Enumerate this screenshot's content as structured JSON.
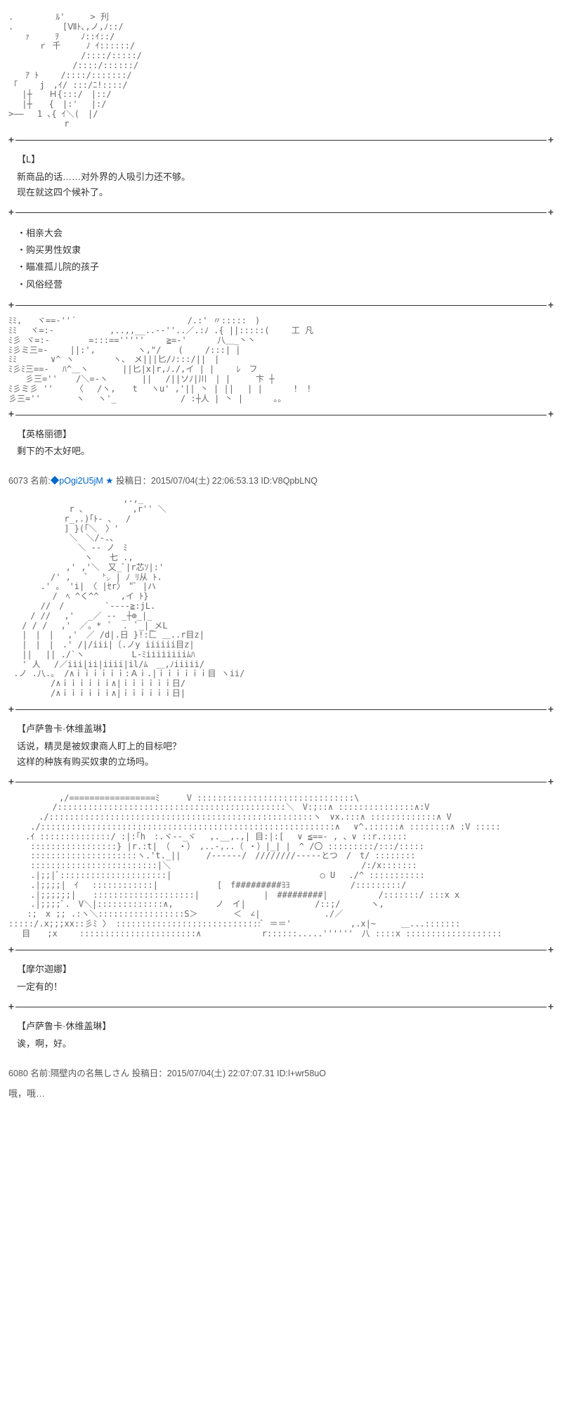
{
  "art1": ".　　　　　ﾙ'　　　> 刋\n.　　 　 　 [Ⅶﾄ､,ノ,ﾉ::/\n　　ｧ　　　ｦ 　　ﾉ::ｲ::/\n　　　 ｒ 千　　　ﾉ ｲ::::::/\n 　　　　　　　　/::::/:::::/\n　　　　　　　 /::::/::::::/\n　　ｱ ﾄ　　 /::::/:::::::/\n ｢　　 j　,ｲ/ :::/ﾆ!::::/\n　 |┼　　Ｈ{:::/　|::/\n　 |┼　　{　|:'　 |:/\n>――　 1 ､{ ｲ＼(　|/\n　　　　　　 r",
  "block_l_speaker": "【L】",
  "block_l_line1": "新商品的话……对外界的人吸引力还不够。",
  "block_l_line2": "现在就这四个候补了。",
  "list1": "・相亲大会",
  "list2": "・购买男性奴隶",
  "list3": "・瞄准孤儿院的孩子",
  "list4": "・风俗经营",
  "art2": "ﾐﾐ,   ヾ==‐''´ 　　　　　　　　　　　　 /.:' 〃:::::　)\nﾐﾐ 　ヾ=:‐　　　　　　 ,..,,__..--''..／.:ﾉ .{ ||:::::(　 　工 凡\nﾐ彡 ヾ=:‐　　　　 =:::=='''''　 　≧=-' 　　　八＿_丶丶\nﾐ彡ミ三=‐ 　　||:',　　　　　ヽ,\"/　　(　　 /:::| |\nﾐﾐ　　　　∨^ ヽ 　　　　ヽ、　メ|||匕/ﾉ:::/||　|\nﾐ彡ﾐ三==‐　 ﾊ^＿ヽ　　　　||匕|x|r,ﾉ./,イ | | 　　ﾚ　フ\n　　彡三='' 　 /＼=-ヽ　　　　|| 　/||ソﾉ|川　| |　　　卞 ┼\nﾐ彡ミ彡 ''　　 〈　 /ヽ,　　t 　ヽu' ,'|| 丶 | ||　 | |　　　 !　!\n彡三='' 　　　 ヽ　 ヽ'_　　 　　　　　/ :┼人 | 丶 |　　　 。。",
  "block_ing_speaker": "【英格丽德】",
  "block_ing_line1": "剩下的不太好吧。",
  "post1_num": "6073",
  "post1_nameprefix": "名前:",
  "post1_trip": "◆pOgi2U5jM",
  "post1_star": "★",
  "post1_meta": "投稿日：2015/07/04(土) 22:06:53.13 ID:V8QpbLNQ",
  "art3": "　　　　　　　　　　　　　 ,.,_\n　　　　　 　 r ､ 　　　 　 ,r'' ＼\n　　　　　　 r_,.)｢ﾄ- ､　 /\n　　　　　　 ] }(｢＼　〉'\n　　　　　 　 ＼　＼/-.、\n　　　　　　 　 ＼ -- ノ　ﾐ\n　　　　　　　　　ヽ　　七 ., 　\n　　　 　 　 ,' ,'＼　又_ﾞ|r芯ｿ|:'\n　　　　　/' , 　ﾞ　 ㌧ | ﾉ ﾘ从 ﾄ.\n 　 　 .' 。 'i|　〈 |ｾr〉　\"ﾞ |ハ\n　　　 　 /　ﾍ ^く^^ 　　,イ ﾄ}\n 　 　 //　/　 　 　 `----≧:jL.\n　　 / // 　,'　 _／ -- _┼⊕_|_\n　 / / / 　,'　／。*  ﾟ  .  ﾟ_|_メL\n　 |　|　| 　,'　／ /d|.日 }!:匚 ＿..r目z|\n　 |　|　|　.' /|/iii|〔.ノy iiiiii目z|\n　 ||　 || ./`ヽ　　　　　 L-ﾐiiiiiiiiﾑﾊ\n　 ' 人 　/／iii|ii|iiii|il/ﾑ　＿,ﾉiiiii/\n .ノ .八.。 /∧ｉｉｉｉｉｉ:Ａｉ.|ｉｉｉｉｉｉ目 ヽii/\n　　　　　/∧ｉｉｉｉｉｉ∧|ｉｉｉｉｉｉ日/\n　　　　　/∧ｉｉｉｉｉｉ∧|ｉｉｉｉｉｉ日|",
  "block_lusa_speaker": "【卢萨鲁卡·休维盖琳】",
  "block_lusa_line1": "话说，精灵是被奴隶商人盯上的目标吧？",
  "block_lusa_line2": "这样的种族有购买奴隶的立场吗。",
  "art4": "　　　　　　,/=================ﾐ 　　 V :::::::::::::::::::::::::::::::\\\n　　　 　 /:::::::::::::::::::::::::::::::::::::::::::::＼　V:;::∧ :::::::::::::::∧:V\n　　　 ./::::::::::::::::::::::::::::::::::::::::::::::::::::ヽ　∨x.:::∧ :::::::::::::∧ V\n　　 ./::::::::::::::::::::::::::::::::::::::::::::::::::::::::::∧ 　∨^.::::::∧ ::::::::∧ :V :::::\n　　.ｲ ::::::::::::::/ :|:｢h　:.ヾ--_ヾ 　,.__,.,| 目:|:[ 　∨ ≦==- , 、∨ ::r.:::::\n　　 :::::::::::::::::} |r.:t|　（　・）　,..-,..（ ・）|_| |　^ /〇 :::::::::/:::/:::::\n　　 :::::::::::::::::::::ヽ.'t._||　　　/------/　////////-----とつ　/　t/ ::::::::\n　　 :::::::::::::::::::::::::|＼ 　　　　　　　　　　　　　　　　　　　　　　/:/x:::::::\n　　 .|;;|ﾞ:::::::::::::::::::::|　　　 　　　　　　　　　　　　　　○ U 　./^ :::::::::::\n　　 .|;;;;|　ｲ 　::::::::::::|　　　　　　　[　f#########ﾖﾖ 　　 　　　　/:::::::::/\n　　 .|;;;;;;|　　::::::::::::::::::::| 　　　　　　　|　#########|　　　　　　/:::::::/ :::x x\n　　 .|;;;;ﾞ.　V＼|:::::::::::::∧,　　　　　ノ　イ| 　　　　　　　 /::;/　　　 ヽ,\n 　 :;　x ;; .:ヽ＼:::::::::::::::::S＞ 　　　 ＜　∠|　　　　 　　　./／\n:::::/.x;;;xx::彡ﾐ 〉 :::::::::::::::::::::::::::::ﾞ ＝＝'　　　　　　　,.x|~　　　＿...:::::::\n　 目　　;x　 　:::::::::::::::::::::::∧ 　　　　　　 r::::::.....''''''　八 ::::x :::::::::::::::::::",
  "block_mor_speaker": "【摩尔迦娜】",
  "block_mor_line1": "一定有的！",
  "block_lusa2_speaker": "【卢萨鲁卡·休维盖琳】",
  "block_lusa2_line1": "诶，啊，好。",
  "post2_num": "6080",
  "post2_nameprefix": "名前:",
  "post2_name": "隔壁内の名無しさん",
  "post2_meta": "投稿日：2015/07/04(土) 22:07:07.31 ID:l+wr58uO",
  "footer_text": "哦，哦…"
}
